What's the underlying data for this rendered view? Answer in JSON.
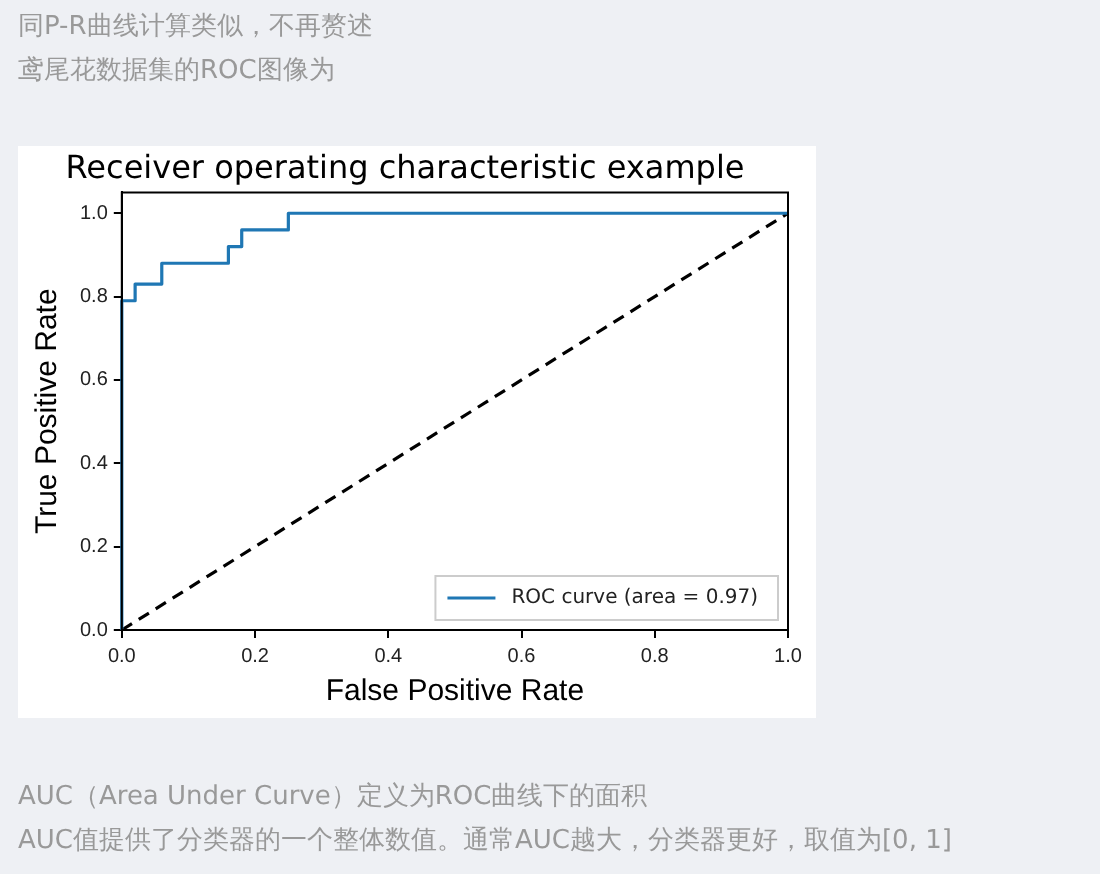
{
  "chart_data": {
    "type": "line",
    "title": "Receiver operating characteristic example",
    "xlabel": "False Positive Rate",
    "ylabel": "True Positive Rate",
    "annotations": [
      "同P-R曲线计算类似，不再赘述",
      "鸢尾花数据集的ROC图像为",
      "AUC（Area Under Curve）定义为ROC曲线下的面积",
      "AUC值提供了分类器的一个整体数值。通常AUC越大，分类器更好，取值为[0, 1]"
    ],
    "series": [
      {
        "name": "ROC curve (area = 0.97)",
        "color": "#1f77b4",
        "line_style": "solid",
        "x": [
          0,
          0,
          0.02,
          0.02,
          0.06,
          0.06,
          0.16,
          0.16,
          0.18,
          0.18,
          0.25,
          0.25,
          1
        ],
        "values": [
          0,
          0.79,
          0.79,
          0.83,
          0.83,
          0.88,
          0.88,
          0.92,
          0.92,
          0.96,
          0.96,
          1,
          1
        ]
      },
      {
        "color": "#000000",
        "line_style": "dashed",
        "x": [
          0,
          1
        ],
        "values": [
          0,
          1
        ]
      }
    ],
    "xlim": [
      0,
      1
    ],
    "ylim": [
      0,
      1.05
    ],
    "xticks": [
      {
        "value": 0,
        "label": "0.0"
      },
      0.2,
      0.4,
      0.6,
      0.8,
      {
        "value": 1,
        "label": "1.0"
      }
    ],
    "yticks": [
      {
        "value": 0,
        "label": "0.0"
      },
      0.2,
      0.4,
      0.6,
      0.8,
      {
        "value": 1,
        "label": "1.0"
      }
    ],
    "grid": false,
    "legend": "bottom right",
    "marker": "none"
  }
}
